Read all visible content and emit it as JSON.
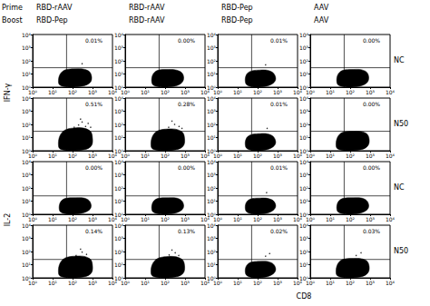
{
  "chart_data": {
    "type": "scatter_grid",
    "color": "#000000",
    "log": true,
    "header": {
      "prime_label": "Prime",
      "boost_label": "Boost"
    },
    "columns": [
      {
        "prime": "RBD-rAAV",
        "boost": "RBD-Pep"
      },
      {
        "prime": "RBD-rAAV",
        "boost": "RBD-rAAV"
      },
      {
        "prime": "RBD-Pep",
        "boost": "RBD-Pep"
      },
      {
        "prime": "AAV",
        "boost": "AAV"
      }
    ],
    "rows": [
      {
        "stain": "IFN-γ",
        "label": "NC"
      },
      {
        "stain": "IFN-γ",
        "label": "N50"
      },
      {
        "stain": "IL-2",
        "label": "NC"
      },
      {
        "stain": "IL-2",
        "label": "N50"
      }
    ],
    "x_label": "CD8",
    "xlim": [
      1,
      10000
    ],
    "ylim": [
      1,
      10000
    ],
    "xticks": [
      {
        "value": 1,
        "label": "10⁰"
      },
      {
        "value": 10,
        "label": "10¹"
      },
      {
        "value": 100,
        "label": "10²"
      },
      {
        "value": 1000,
        "label": "10³"
      },
      {
        "value": 10000,
        "label": "10⁴"
      }
    ],
    "yticks": [
      {
        "value": 1,
        "label": "10⁰"
      },
      {
        "value": 10,
        "label": "10¹"
      },
      {
        "value": 100,
        "label": "10²"
      },
      {
        "value": 1000,
        "label": "10³"
      },
      {
        "value": 10000,
        "label": "10⁴"
      }
    ],
    "panels": [
      [
        {
          "percent": 0.01,
          "percent_label": "0.01%",
          "gate": {
            "x": 50,
            "y": 30
          },
          "cloud": [
            [
              20,
              2
            ],
            [
              40,
              1.1
            ],
            [
              200,
              1.1
            ],
            [
              700,
              2
            ],
            [
              900,
              6
            ],
            [
              600,
              18
            ],
            [
              150,
              25
            ],
            [
              30,
              15
            ]
          ],
          "events": [
            [
              300,
              60
            ]
          ]
        },
        {
          "percent": 0.0,
          "percent_label": "0.00%",
          "gate": {
            "x": 50,
            "y": 30
          },
          "cloud": [
            [
              22,
              2
            ],
            [
              45,
              1.1
            ],
            [
              220,
              1.1
            ],
            [
              650,
              2
            ],
            [
              850,
              6
            ],
            [
              550,
              16
            ],
            [
              140,
              22
            ],
            [
              30,
              14
            ]
          ],
          "events": []
        },
        {
          "percent": 0.01,
          "percent_label": "0.01%",
          "gate": {
            "x": 50,
            "y": 30
          },
          "cloud": [
            [
              25,
              2
            ],
            [
              50,
              1.1
            ],
            [
              200,
              1.1
            ],
            [
              600,
              2
            ],
            [
              800,
              5
            ],
            [
              500,
              15
            ],
            [
              130,
              20
            ],
            [
              32,
              12
            ]
          ],
          "events": [
            [
              250,
              50
            ]
          ]
        },
        {
          "percent": 0.0,
          "percent_label": "0.00%",
          "gate": {
            "x": 50,
            "y": 30
          },
          "cloud": [
            [
              22,
              2
            ],
            [
              45,
              1.1
            ],
            [
              210,
              1.1
            ],
            [
              650,
              2
            ],
            [
              850,
              6
            ],
            [
              560,
              17
            ],
            [
              140,
              22
            ],
            [
              30,
              14
            ]
          ],
          "events": []
        }
      ],
      [
        {
          "percent": 0.51,
          "percent_label": "0.51%",
          "gate": {
            "x": 50,
            "y": 30
          },
          "cloud": [
            [
              20,
              2
            ],
            [
              40,
              1.1
            ],
            [
              250,
              1.1
            ],
            [
              800,
              2
            ],
            [
              1000,
              8
            ],
            [
              700,
              35
            ],
            [
              150,
              55
            ],
            [
              30,
              25
            ]
          ],
          "events": [
            [
              120,
              60
            ],
            [
              200,
              90
            ],
            [
              300,
              150
            ],
            [
              450,
              70
            ],
            [
              600,
              120
            ],
            [
              250,
              250
            ],
            [
              800,
              60
            ],
            [
              180,
              40
            ]
          ]
        },
        {
          "percent": 0.28,
          "percent_label": "0.28%",
          "gate": {
            "x": 50,
            "y": 30
          },
          "cloud": [
            [
              20,
              2
            ],
            [
              40,
              1.1
            ],
            [
              240,
              1.1
            ],
            [
              750,
              2
            ],
            [
              950,
              8
            ],
            [
              650,
              30
            ],
            [
              140,
              45
            ],
            [
              30,
              22
            ]
          ],
          "events": [
            [
              150,
              60
            ],
            [
              300,
              100
            ],
            [
              500,
              70
            ],
            [
              220,
              180
            ],
            [
              700,
              50
            ]
          ]
        },
        {
          "percent": 0.01,
          "percent_label": "0.01%",
          "gate": {
            "x": 50,
            "y": 30
          },
          "cloud": [
            [
              25,
              2
            ],
            [
              50,
              1.1
            ],
            [
              200,
              1.1
            ],
            [
              600,
              2
            ],
            [
              800,
              5
            ],
            [
              500,
              15
            ],
            [
              130,
              20
            ],
            [
              32,
              12
            ]
          ],
          "events": [
            [
              300,
              50
            ]
          ]
        },
        {
          "percent": 0.0,
          "percent_label": "0.00%",
          "gate": {
            "x": 50,
            "y": 30
          },
          "cloud": [
            [
              20,
              2
            ],
            [
              40,
              1.1
            ],
            [
              230,
              1.1
            ],
            [
              700,
              2
            ],
            [
              900,
              7
            ],
            [
              600,
              22
            ],
            [
              140,
              30
            ],
            [
              30,
              18
            ]
          ],
          "events": []
        }
      ],
      [
        {
          "percent": 0.0,
          "percent_label": "0.00%",
          "gate": {
            "x": 50,
            "y": 25
          },
          "cloud": [
            [
              22,
              2
            ],
            [
              45,
              1.1
            ],
            [
              200,
              1.1
            ],
            [
              650,
              2
            ],
            [
              850,
              5
            ],
            [
              550,
              14
            ],
            [
              140,
              18
            ],
            [
              30,
              12
            ]
          ],
          "events": []
        },
        {
          "percent": 0.0,
          "percent_label": "0.00%",
          "gate": {
            "x": 50,
            "y": 25
          },
          "cloud": [
            [
              22,
              2
            ],
            [
              45,
              1.1
            ],
            [
              210,
              1.1
            ],
            [
              650,
              2
            ],
            [
              850,
              5
            ],
            [
              550,
              14
            ],
            [
              140,
              18
            ],
            [
              30,
              12
            ]
          ],
          "events": []
        },
        {
          "percent": 0.01,
          "percent_label": "0.01%",
          "gate": {
            "x": 50,
            "y": 25
          },
          "cloud": [
            [
              25,
              2
            ],
            [
              50,
              1.1
            ],
            [
              200,
              1.1
            ],
            [
              600,
              2
            ],
            [
              800,
              5
            ],
            [
              500,
              13
            ],
            [
              130,
              17
            ],
            [
              32,
              11
            ]
          ],
          "events": [
            [
              280,
              45
            ]
          ]
        },
        {
          "percent": 0.0,
          "percent_label": "0.00%",
          "gate": {
            "x": 50,
            "y": 25
          },
          "cloud": [
            [
              22,
              2
            ],
            [
              45,
              1.1
            ],
            [
              210,
              1.1
            ],
            [
              650,
              2
            ],
            [
              850,
              5
            ],
            [
              550,
              14
            ],
            [
              140,
              18
            ],
            [
              30,
              12
            ]
          ],
          "events": []
        }
      ],
      [
        {
          "percent": 0.14,
          "percent_label": "0.14%",
          "gate": {
            "x": 50,
            "y": 25
          },
          "cloud": [
            [
              20,
              2
            ],
            [
              40,
              1.1
            ],
            [
              250,
              1.1
            ],
            [
              800,
              2
            ],
            [
              1000,
              8
            ],
            [
              700,
              30
            ],
            [
              150,
              45
            ],
            [
              30,
              22
            ]
          ],
          "events": [
            [
              150,
              50
            ],
            [
              300,
              90
            ],
            [
              500,
              60
            ],
            [
              250,
              150
            ]
          ]
        },
        {
          "percent": 0.13,
          "percent_label": "0.13%",
          "gate": {
            "x": 50,
            "y": 25
          },
          "cloud": [
            [
              20,
              2
            ],
            [
              40,
              1.1
            ],
            [
              240,
              1.1
            ],
            [
              750,
              2
            ],
            [
              950,
              8
            ],
            [
              650,
              28
            ],
            [
              140,
              42
            ],
            [
              30,
              20
            ]
          ],
          "events": [
            [
              160,
              55
            ],
            [
              320,
              80
            ],
            [
              480,
              50
            ],
            [
              220,
              130
            ]
          ]
        },
        {
          "percent": 0.02,
          "percent_label": "0.02%",
          "gate": {
            "x": 50,
            "y": 25
          },
          "cloud": [
            [
              25,
              2
            ],
            [
              50,
              1.1
            ],
            [
              200,
              1.1
            ],
            [
              600,
              2
            ],
            [
              800,
              5
            ],
            [
              500,
              14
            ],
            [
              130,
              18
            ],
            [
              32,
              11
            ]
          ],
          "events": [
            [
              250,
              45
            ],
            [
              400,
              70
            ]
          ]
        },
        {
          "percent": 0.03,
          "percent_label": "0.03%",
          "gate": {
            "x": 50,
            "y": 25
          },
          "cloud": [
            [
              20,
              2
            ],
            [
              40,
              1.1
            ],
            [
              230,
              1.1
            ],
            [
              700,
              2
            ],
            [
              900,
              7
            ],
            [
              600,
              22
            ],
            [
              140,
              30
            ],
            [
              30,
              18
            ]
          ],
          "events": [
            [
              200,
              50
            ],
            [
              350,
              80
            ]
          ]
        }
      ]
    ]
  }
}
